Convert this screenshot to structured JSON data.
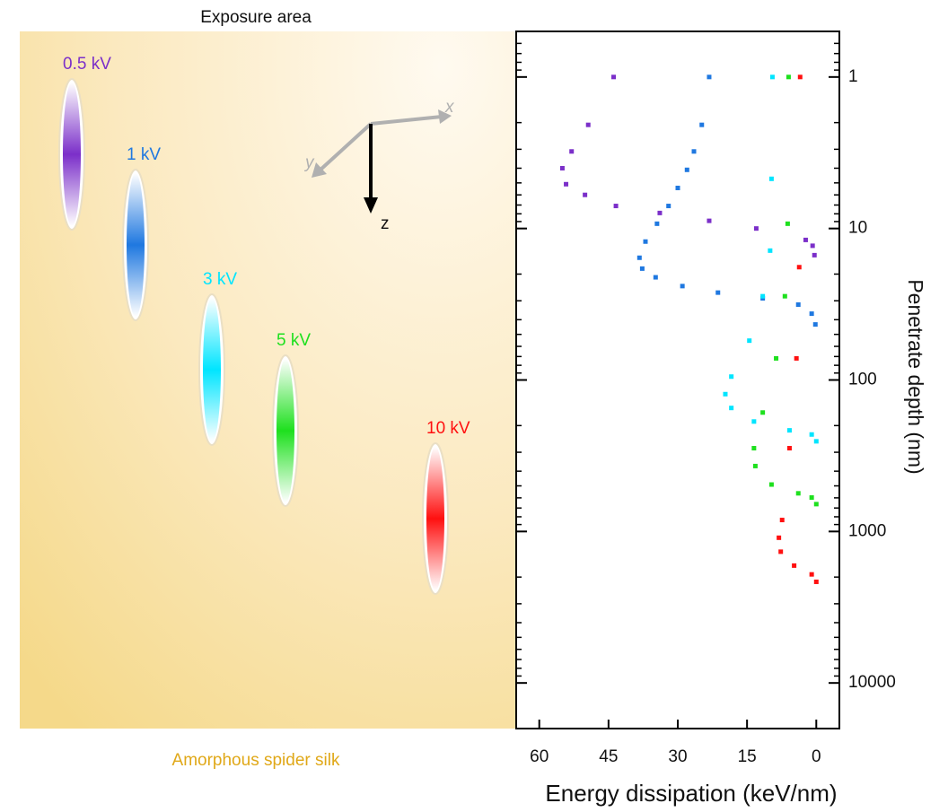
{
  "illustration": {
    "title": "Exposure area",
    "caption": "Amorphous spider silk",
    "beams": [
      {
        "label": "0.5 kV"
      },
      {
        "label": "1 kV"
      },
      {
        "label": "3 kV"
      },
      {
        "label": "5 kV"
      },
      {
        "label": "10 kV"
      }
    ],
    "axes": {
      "x": "x",
      "y": "y",
      "z": "z"
    }
  },
  "chart_data": {
    "type": "scatter",
    "xlabel": "Energy dissipation (keV/nm)",
    "ylabel": "Penetrate depth (nm)",
    "xlim": [
      65,
      -5
    ],
    "xticks": [
      60,
      45,
      30,
      15,
      0
    ],
    "ylim": [
      20000,
      0.5
    ],
    "ylog": true,
    "yticks": [
      1,
      10,
      100,
      1000,
      10000
    ],
    "yminorticks": [
      0.6,
      0.7,
      0.8,
      0.9,
      2,
      3,
      4,
      5,
      6,
      7,
      8,
      9,
      20,
      30,
      40,
      50,
      60,
      70,
      80,
      90,
      200,
      300,
      400,
      500,
      600,
      700,
      800,
      900,
      2000,
      3000,
      4000,
      5000,
      6000,
      7000,
      8000,
      9000
    ],
    "series": [
      {
        "color": "#7b2fc9",
        "x": [
          43.9,
          49.4,
          53,
          55,
          54.2,
          50.1,
          43.4,
          33.9,
          23.2,
          13,
          2.3,
          0.8,
          0.4
        ],
        "y": [
          1,
          2.07,
          3.1,
          4,
          5.1,
          6,
          7.1,
          7.9,
          8.9,
          10,
          11.9,
          13,
          15
        ]
      },
      {
        "color": "#1f78e0",
        "x": [
          23.2,
          24.8,
          26.5,
          28,
          30,
          32,
          34.5,
          37,
          38.3,
          37.7,
          34.8,
          29,
          21.3,
          11.6,
          3.9,
          1,
          0.2
        ],
        "y": [
          1,
          2.07,
          3.1,
          4.1,
          5.4,
          7.1,
          9.3,
          12.2,
          15.6,
          18.4,
          21,
          24,
          26.5,
          28.9,
          31.8,
          36.5,
          43
        ]
      },
      {
        "color": "#00e5ff",
        "x": [
          9.5,
          9.7,
          10,
          11.6,
          14.5,
          18.4,
          19.7,
          18.4,
          13.5,
          5.8,
          1,
          0
        ],
        "y": [
          1,
          4.7,
          14,
          28,
          55,
          95,
          124,
          153,
          188,
          215,
          229,
          254
        ]
      },
      {
        "color": "#1ee01e",
        "x": [
          6,
          6.2,
          6.8,
          8.7,
          11.6,
          13.5,
          13.2,
          9.7,
          3.9,
          1,
          0
        ],
        "y": [
          1,
          9.3,
          28,
          72,
          164,
          282,
          370,
          490,
          560,
          597,
          660
        ]
      },
      {
        "color": "#ff1010",
        "x": [
          3.5,
          3.7,
          4.3,
          5.8,
          7.4,
          8.1,
          7.7,
          4.8,
          1,
          0
        ],
        "y": [
          1,
          18,
          72,
          282,
          840,
          1100,
          1360,
          1680,
          1920,
          2150
        ]
      }
    ]
  }
}
